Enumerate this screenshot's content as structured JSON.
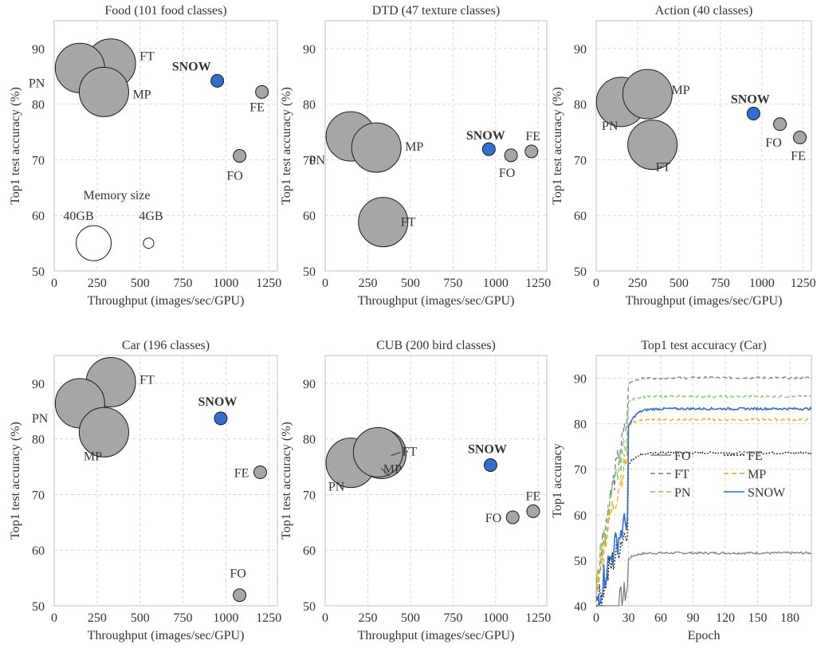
{
  "chart_data": [
    {
      "type": "scatter",
      "subtype": "bubble",
      "title": "Food (101 food classes)",
      "xlabel": "Throughput (images/sec/GPU)",
      "ylabel": "Top1 test accuracy (%)",
      "xlim": [
        0,
        1300
      ],
      "xticks": [
        0,
        250,
        500,
        750,
        1000,
        1250
      ],
      "ylim": [
        50,
        95
      ],
      "yticks": [
        50,
        60,
        70,
        80,
        90
      ],
      "grid": true,
      "points": [
        {
          "label": "FT",
          "x": 330,
          "y": 87.3,
          "memory_gb": 40
        },
        {
          "label": "PN",
          "x": 150,
          "y": 86.5,
          "memory_gb": 40
        },
        {
          "label": "MP",
          "x": 290,
          "y": 82.2,
          "memory_gb": 40
        },
        {
          "label": "SNOW",
          "x": 950,
          "y": 84.2,
          "memory_gb": 4,
          "highlight": true
        },
        {
          "label": "FE",
          "x": 1210,
          "y": 82.2,
          "memory_gb": 4
        },
        {
          "label": "FO",
          "x": 1080,
          "y": 70.7,
          "memory_gb": 4
        }
      ],
      "memory_legend": {
        "title": "Memory size",
        "items": [
          {
            "label": "40GB",
            "x": 230,
            "y": 55,
            "memory_gb": 40
          },
          {
            "label": "4GB",
            "x": 550,
            "y": 55,
            "memory_gb": 4
          }
        ]
      }
    },
    {
      "type": "scatter",
      "subtype": "bubble",
      "title": "DTD (47 texture classes)",
      "xlabel": "Throughput (images/sec/GPU)",
      "ylabel": "Top1 test accuracy (%)",
      "xlim": [
        0,
        1300
      ],
      "xticks": [
        0,
        250,
        500,
        750,
        1000,
        1250
      ],
      "ylim": [
        50,
        95
      ],
      "yticks": [
        50,
        60,
        70,
        80,
        90
      ],
      "grid": true,
      "points": [
        {
          "label": "PN",
          "x": 150,
          "y": 74.2,
          "memory_gb": 40
        },
        {
          "label": "MP",
          "x": 300,
          "y": 72.2,
          "memory_gb": 40
        },
        {
          "label": "FT",
          "x": 340,
          "y": 58.8,
          "memory_gb": 40
        },
        {
          "label": "SNOW",
          "x": 960,
          "y": 71.9,
          "memory_gb": 4,
          "highlight": true
        },
        {
          "label": "FO",
          "x": 1090,
          "y": 70.8,
          "memory_gb": 4
        },
        {
          "label": "FE",
          "x": 1210,
          "y": 71.5,
          "memory_gb": 4
        }
      ]
    },
    {
      "type": "scatter",
      "subtype": "bubble",
      "title": "Action (40 classes)",
      "xlabel": "Throughput (images/sec/GPU)",
      "ylabel": "Top1 test accuracy (%)",
      "xlim": [
        0,
        1300
      ],
      "xticks": [
        0,
        250,
        500,
        750,
        1000,
        1250
      ],
      "ylim": [
        50,
        95
      ],
      "yticks": [
        50,
        60,
        70,
        80,
        90
      ],
      "grid": true,
      "points": [
        {
          "label": "PN",
          "x": 150,
          "y": 80.4,
          "memory_gb": 40
        },
        {
          "label": "MP",
          "x": 310,
          "y": 81.8,
          "memory_gb": 40
        },
        {
          "label": "FT",
          "x": 340,
          "y": 72.7,
          "memory_gb": 40
        },
        {
          "label": "SNOW",
          "x": 950,
          "y": 78.3,
          "memory_gb": 4,
          "highlight": true
        },
        {
          "label": "FO",
          "x": 1110,
          "y": 76.4,
          "memory_gb": 4
        },
        {
          "label": "FE",
          "x": 1230,
          "y": 74.0,
          "memory_gb": 4
        }
      ]
    },
    {
      "type": "scatter",
      "subtype": "bubble",
      "title": "Car (196 classes)",
      "xlabel": "Throughput (images/sec/GPU)",
      "ylabel": "Top1 test accuracy (%)",
      "xlim": [
        0,
        1300
      ],
      "xticks": [
        0,
        250,
        500,
        750,
        1000,
        1250
      ],
      "ylim": [
        50,
        95
      ],
      "yticks": [
        50,
        60,
        70,
        80,
        90
      ],
      "grid": true,
      "points": [
        {
          "label": "FT",
          "x": 330,
          "y": 90.2,
          "memory_gb": 40
        },
        {
          "label": "PN",
          "x": 150,
          "y": 86.4,
          "memory_gb": 40
        },
        {
          "label": "MP",
          "x": 290,
          "y": 81.2,
          "memory_gb": 40
        },
        {
          "label": "SNOW",
          "x": 970,
          "y": 83.7,
          "memory_gb": 4,
          "highlight": true
        },
        {
          "label": "FE",
          "x": 1200,
          "y": 74.0,
          "memory_gb": 4
        },
        {
          "label": "FO",
          "x": 1080,
          "y": 51.9,
          "memory_gb": 4
        }
      ]
    },
    {
      "type": "scatter",
      "subtype": "bubble",
      "title": "CUB (200 bird classes)",
      "xlabel": "Throughput (images/sec/GPU)",
      "ylabel": "Top1 test accuracy (%)",
      "xlim": [
        0,
        1300
      ],
      "xticks": [
        0,
        250,
        500,
        750,
        1000,
        1250
      ],
      "ylim": [
        50,
        95
      ],
      "yticks": [
        50,
        60,
        70,
        80,
        90
      ],
      "grid": true,
      "points": [
        {
          "label": "FT",
          "x": 330,
          "y": 77.3,
          "memory_gb": 40
        },
        {
          "label": "PN",
          "x": 150,
          "y": 75.7,
          "memory_gb": 40
        },
        {
          "label": "MP",
          "x": 310,
          "y": 77.6,
          "memory_gb": 40
        },
        {
          "label": "SNOW",
          "x": 970,
          "y": 75.3,
          "memory_gb": 4,
          "highlight": true
        },
        {
          "label": "FO",
          "x": 1100,
          "y": 65.9,
          "memory_gb": 4
        },
        {
          "label": "FE",
          "x": 1220,
          "y": 67.0,
          "memory_gb": 4
        }
      ]
    },
    {
      "type": "line",
      "title": "Top1 test accuracy (Car)",
      "xlabel": "Epoch",
      "ylabel": "Top1 accuracy",
      "xlim": [
        0,
        200
      ],
      "xticks": [
        0,
        30,
        60,
        90,
        120,
        150,
        180
      ],
      "ylim": [
        40,
        95
      ],
      "yticks": [
        40,
        50,
        60,
        70,
        80,
        90
      ],
      "grid": true,
      "legend": "center",
      "series": [
        {
          "name": "FO",
          "color": "#7f7f7f",
          "dash": "solid",
          "start": 30,
          "final": 51.6,
          "jump_epoch": 30,
          "jump_from": 44
        },
        {
          "name": "FE",
          "color": "#1a1a1a",
          "dash": "dotted",
          "start": 38,
          "final": 73.6,
          "jump_epoch": 30,
          "jump_from": 58
        },
        {
          "name": "FT",
          "color": "#7f7f7f",
          "dash": "dashed",
          "start": 44,
          "final": 90.1,
          "jump_epoch": 30,
          "jump_from": 82
        },
        {
          "name": "MP",
          "color": "#f2a900",
          "dash": "dashed",
          "start": 44,
          "final": 80.9,
          "jump_epoch": 30,
          "jump_from": 74
        },
        {
          "name": "PN",
          "color": "#7bc96f",
          "dash": "dashed",
          "start": 44,
          "final": 86.0,
          "jump_epoch": 30,
          "jump_from": 79
        },
        {
          "name": "SNOW",
          "color": "#2f6fd1",
          "dash": "solid",
          "start": 40,
          "final": 83.3,
          "jump_epoch": 30,
          "jump_from": 60
        }
      ]
    }
  ],
  "colors": {
    "bubble_fill": "#a6a6a6",
    "snow_fill": "#2f6fd1",
    "memory_legend_fill": "#ffffff",
    "text": "#333333",
    "grid": "#d9d9d9"
  }
}
